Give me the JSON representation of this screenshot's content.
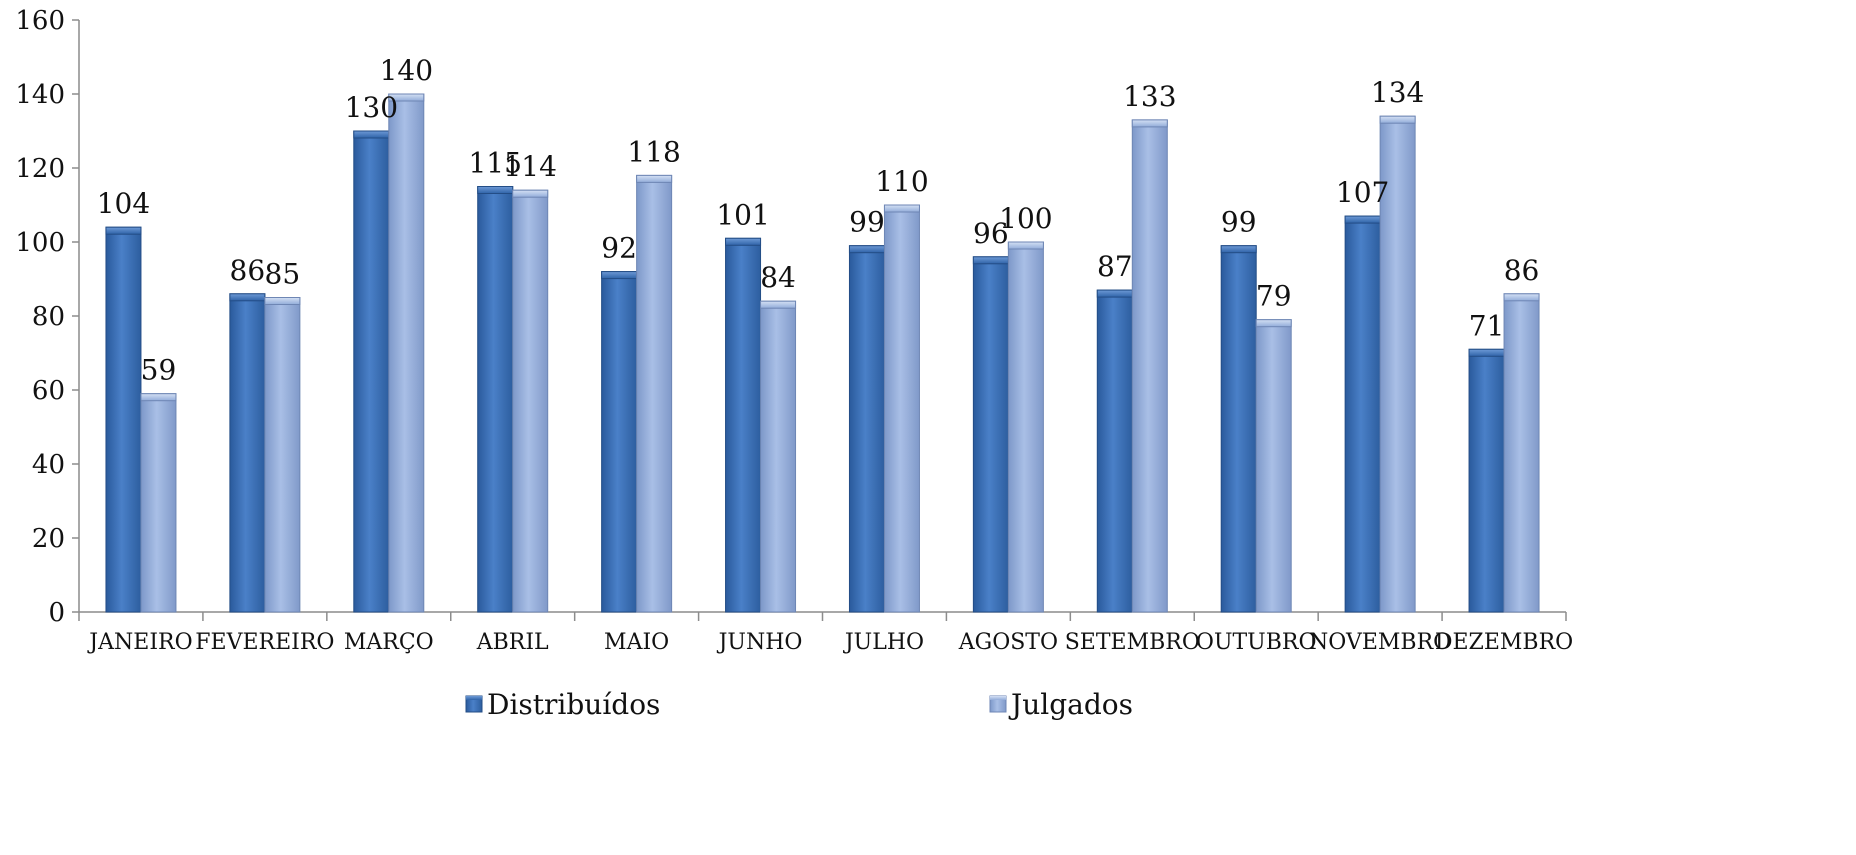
{
  "chart_data": {
    "type": "bar",
    "categories": [
      "JANEIRO",
      "FEVEREIRO",
      "MARÇO",
      "ABRIL",
      "MAIO",
      "JUNHO",
      "JULHO",
      "AGOSTO",
      "SETEMBRO",
      "OUTUBRO",
      "NOVEMBRO",
      "DEZEMBRO"
    ],
    "series": [
      {
        "name": "Distribuídos",
        "values": [
          104,
          86,
          130,
          115,
          92,
          101,
          99,
          96,
          87,
          99,
          107,
          71
        ],
        "color": "#3a6fb8"
      },
      {
        "name": "Julgados",
        "values": [
          59,
          85,
          140,
          114,
          118,
          84,
          110,
          100,
          133,
          79,
          134,
          86
        ],
        "color": "#8fa9d8"
      }
    ],
    "ylim": [
      0,
      160
    ],
    "yticks": [
      0,
      20,
      40,
      60,
      80,
      100,
      120,
      140,
      160
    ],
    "title": "",
    "xlabel": "",
    "ylabel": "",
    "grid": false,
    "legend_position": "bottom"
  }
}
